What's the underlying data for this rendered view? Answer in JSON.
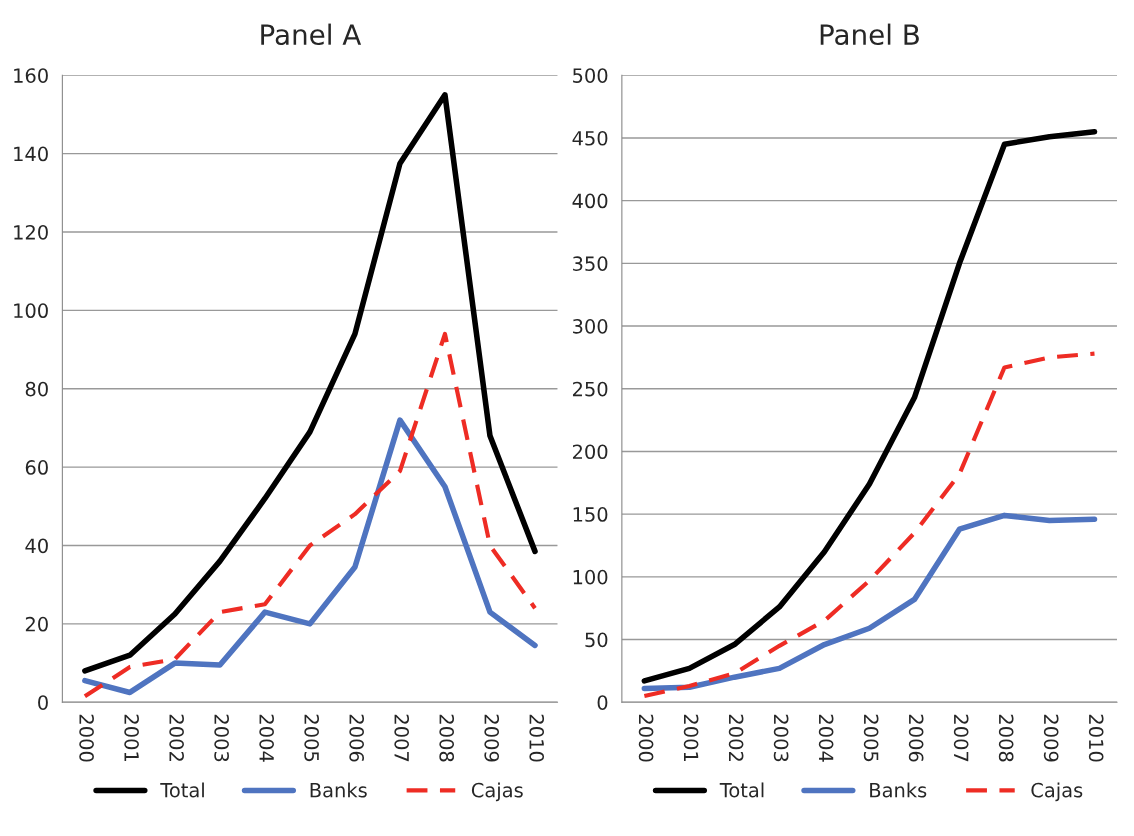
{
  "chart_data": [
    {
      "type": "line",
      "title": "Panel A",
      "categories": [
        "2000",
        "2001",
        "2002",
        "2003",
        "2004",
        "2005",
        "2006",
        "2007",
        "2008",
        "2009",
        "2010"
      ],
      "ylim": [
        0,
        160
      ],
      "yticks": [
        0,
        20,
        40,
        60,
        80,
        100,
        120,
        140,
        160
      ],
      "grid": "y",
      "legend": "bottom",
      "series": [
        {
          "name": "Total",
          "color": "#000000",
          "line_style": "solid",
          "values": [
            8,
            12,
            22.5,
            36,
            52,
            69,
            94,
            137.5,
            155,
            68,
            38.5
          ]
        },
        {
          "name": "Banks",
          "color": "#4f74c0",
          "line_style": "solid",
          "values": [
            5.5,
            2.5,
            10,
            9.5,
            23,
            20,
            34.5,
            72,
            55,
            23,
            14.5
          ]
        },
        {
          "name": "Cajas",
          "color": "#ee2c24",
          "line_style": "dashed",
          "values": [
            1.5,
            9,
            11,
            23,
            25,
            40,
            48,
            59,
            94,
            40,
            24
          ]
        }
      ]
    },
    {
      "type": "line",
      "title": "Panel B",
      "categories": [
        "2000",
        "2001",
        "2002",
        "2003",
        "2004",
        "2005",
        "2006",
        "2007",
        "2008",
        "2009",
        "2010"
      ],
      "ylim": [
        0,
        500
      ],
      "yticks": [
        0,
        50,
        100,
        150,
        200,
        250,
        300,
        350,
        400,
        450,
        500
      ],
      "grid": "y",
      "legend": "bottom",
      "series": [
        {
          "name": "Total",
          "color": "#000000",
          "line_style": "solid",
          "values": [
            17,
            27,
            46,
            76,
            120,
            174,
            243,
            350,
            445,
            451,
            455
          ]
        },
        {
          "name": "Banks",
          "color": "#4f74c0",
          "line_style": "solid",
          "values": [
            11,
            12,
            20,
            27,
            46,
            59,
            82,
            138,
            149,
            145,
            146
          ]
        },
        {
          "name": "Cajas",
          "color": "#ee2c24",
          "line_style": "dashed",
          "values": [
            5,
            13,
            23,
            45,
            65,
            97,
            135,
            182,
            267,
            275,
            278
          ]
        }
      ]
    }
  ]
}
